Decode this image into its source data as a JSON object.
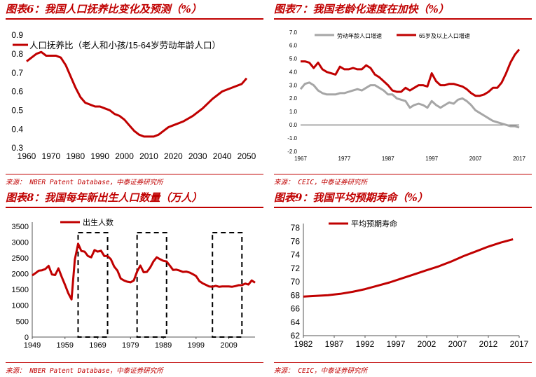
{
  "colors": {
    "red": "#c00000",
    "gray": "#a6a6a6",
    "black": "#000000"
  },
  "panels": [
    {
      "title": "图表6：我国人口抚养比变化及预测（%）",
      "source": "来源：  NBER Patent Database，中泰证券研究所"
    },
    {
      "title": "图表7：我国老龄化速度在加快（%）",
      "source": "来源：  CEIC，中泰证券研究所"
    },
    {
      "title": "图表8：我国每年新出生人口数量（万人）",
      "source": "来源：  NBER Patent Database，中泰证券研究所"
    },
    {
      "title": "图表9：我国平均预期寿命（%）",
      "source": "来源：  CEIC，中泰证券研究所"
    }
  ],
  "chart_data": [
    {
      "type": "line",
      "ylim": [
        0.3,
        0.9
      ],
      "xlim": [
        1960,
        2050
      ],
      "yticks": [
        "0.3",
        "0.4",
        "0.5",
        "0.6",
        "0.7",
        "0.8",
        "0.9"
      ],
      "xticks": [
        "1960",
        "1970",
        "1980",
        "1990",
        "2000",
        "2010",
        "2020",
        "2030",
        "2040",
        "2050"
      ],
      "legend": "top-left",
      "series": [
        {
          "name": "人口抚养比（老人和小孩/15-64岁劳动年龄人口）",
          "color": "#c00000",
          "x": [
            1960,
            1962,
            1964,
            1966,
            1968,
            1970,
            1972,
            1974,
            1976,
            1978,
            1980,
            1982,
            1984,
            1986,
            1988,
            1990,
            1992,
            1994,
            1996,
            1998,
            2000,
            2002,
            2004,
            2006,
            2008,
            2010,
            2012,
            2014,
            2016,
            2018,
            2020,
            2024,
            2028,
            2032,
            2036,
            2040,
            2044,
            2048,
            2050
          ],
          "values": [
            0.76,
            0.78,
            0.8,
            0.81,
            0.79,
            0.79,
            0.79,
            0.78,
            0.74,
            0.68,
            0.62,
            0.57,
            0.54,
            0.53,
            0.52,
            0.52,
            0.51,
            0.5,
            0.48,
            0.47,
            0.45,
            0.42,
            0.39,
            0.37,
            0.36,
            0.36,
            0.36,
            0.37,
            0.39,
            0.41,
            0.42,
            0.44,
            0.47,
            0.51,
            0.56,
            0.6,
            0.62,
            0.64,
            0.67
          ]
        }
      ]
    },
    {
      "type": "line",
      "ylim": [
        -2.0,
        7.0
      ],
      "xlim": [
        1967,
        2017
      ],
      "yticks": [
        "-2.0",
        "-1.0",
        "0.0",
        "1.0",
        "2.0",
        "3.0",
        "4.0",
        "5.0",
        "6.0",
        "7.0"
      ],
      "xticks": [
        "1967",
        "1977",
        "1987",
        "1997",
        "2007",
        "2017"
      ],
      "legend": "top",
      "series": [
        {
          "name": "劳动年龄人口增速",
          "color": "#a6a6a6",
          "x": [
            1967,
            1968,
            1969,
            1970,
            1971,
            1972,
            1973,
            1974,
            1975,
            1976,
            1977,
            1978,
            1979,
            1980,
            1981,
            1982,
            1983,
            1984,
            1985,
            1986,
            1987,
            1988,
            1989,
            1990,
            1991,
            1992,
            1993,
            1994,
            1995,
            1996,
            1997,
            1998,
            1999,
            2000,
            2001,
            2002,
            2003,
            2004,
            2005,
            2006,
            2007,
            2008,
            2009,
            2010,
            2011,
            2012,
            2013,
            2014,
            2015,
            2016,
            2017
          ],
          "values": [
            2.7,
            3.1,
            3.2,
            3.0,
            2.6,
            2.4,
            2.3,
            2.3,
            2.3,
            2.4,
            2.4,
            2.5,
            2.6,
            2.7,
            2.6,
            2.8,
            3.0,
            3.0,
            2.8,
            2.6,
            2.3,
            2.3,
            2.0,
            1.9,
            1.8,
            1.3,
            1.5,
            1.6,
            1.5,
            1.3,
            1.8,
            1.5,
            1.3,
            1.5,
            1.7,
            1.6,
            1.9,
            2.0,
            1.8,
            1.5,
            1.1,
            0.9,
            0.7,
            0.5,
            0.3,
            0.2,
            0.1,
            0.0,
            -0.1,
            -0.1,
            -0.2
          ]
        },
        {
          "name": "65岁及以上人口增速",
          "color": "#c00000",
          "x": [
            1967,
            1968,
            1969,
            1970,
            1971,
            1972,
            1973,
            1974,
            1975,
            1976,
            1977,
            1978,
            1979,
            1980,
            1981,
            1982,
            1983,
            1984,
            1985,
            1986,
            1987,
            1988,
            1989,
            1990,
            1991,
            1992,
            1993,
            1994,
            1995,
            1996,
            1997,
            1998,
            1999,
            2000,
            2001,
            2002,
            2003,
            2004,
            2005,
            2006,
            2007,
            2008,
            2009,
            2010,
            2011,
            2012,
            2013,
            2014,
            2015,
            2016,
            2017
          ],
          "values": [
            4.8,
            4.8,
            4.7,
            4.3,
            4.7,
            4.2,
            4.0,
            3.9,
            3.8,
            4.4,
            4.2,
            4.2,
            4.3,
            4.2,
            4.2,
            4.5,
            4.3,
            3.8,
            3.6,
            3.3,
            3.0,
            2.6,
            2.5,
            2.5,
            2.8,
            2.6,
            2.8,
            3.0,
            3.0,
            2.9,
            3.9,
            3.3,
            3.0,
            3.0,
            3.1,
            3.1,
            3.0,
            2.9,
            2.7,
            2.4,
            2.2,
            2.2,
            2.3,
            2.5,
            2.8,
            2.8,
            3.2,
            3.9,
            4.7,
            5.3,
            5.7
          ]
        }
      ]
    },
    {
      "type": "line",
      "ylim": [
        0,
        3500
      ],
      "xlim": [
        1949,
        2017
      ],
      "yticks": [
        "0",
        "500",
        "1000",
        "1500",
        "2000",
        "2500",
        "3000",
        "3500"
      ],
      "xticks": [
        "1949",
        "1959",
        "1969",
        "1979",
        "1989",
        "1999",
        "2009"
      ],
      "legend": "top",
      "annotations": [
        "dashed boxes around 1963-1972, 1981-1990, 2004-2013"
      ],
      "series": [
        {
          "name": "出生人数",
          "color": "#c00000",
          "x": [
            1949,
            1950,
            1951,
            1952,
            1953,
            1954,
            1955,
            1956,
            1957,
            1958,
            1959,
            1960,
            1961,
            1962,
            1963,
            1964,
            1965,
            1966,
            1967,
            1968,
            1969,
            1970,
            1971,
            1972,
            1973,
            1974,
            1975,
            1976,
            1977,
            1978,
            1979,
            1980,
            1981,
            1982,
            1983,
            1984,
            1985,
            1986,
            1987,
            1988,
            1989,
            1990,
            1991,
            1992,
            1993,
            1994,
            1995,
            1996,
            1997,
            1998,
            1999,
            2000,
            2001,
            2002,
            2003,
            2004,
            2005,
            2006,
            2007,
            2008,
            2009,
            2010,
            2011,
            2012,
            2013,
            2014,
            2015,
            2016,
            2017
          ],
          "values": [
            1950,
            2020,
            2100,
            2110,
            2150,
            2250,
            1980,
            1960,
            2170,
            1900,
            1650,
            1390,
            1190,
            2450,
            2950,
            2720,
            2700,
            2560,
            2520,
            2750,
            2700,
            2730,
            2560,
            2560,
            2460,
            2230,
            2100,
            1850,
            1790,
            1750,
            1730,
            1790,
            2070,
            2260,
            2050,
            2060,
            2200,
            2390,
            2520,
            2460,
            2410,
            2390,
            2260,
            2120,
            2130,
            2100,
            2060,
            2070,
            2040,
            1990,
            1930,
            1770,
            1700,
            1650,
            1600,
            1590,
            1620,
            1590,
            1600,
            1600,
            1600,
            1590,
            1610,
            1640,
            1640,
            1690,
            1660,
            1790,
            1720
          ]
        }
      ]
    },
    {
      "type": "line",
      "ylim": [
        62,
        78
      ],
      "xlim": [
        1982,
        2017
      ],
      "yticks": [
        "62",
        "64",
        "66",
        "68",
        "70",
        "72",
        "74",
        "76",
        "78"
      ],
      "xticks": [
        "1982",
        "1987",
        "1992",
        "1997",
        "2002",
        "2007",
        "2012",
        "2017"
      ],
      "legend": "top",
      "series": [
        {
          "name": "平均预期寿命",
          "color": "#c00000",
          "x": [
            1982,
            1984,
            1986,
            1988,
            1990,
            1992,
            1994,
            1996,
            1998,
            2000,
            2002,
            2004,
            2006,
            2008,
            2010,
            2012,
            2014,
            2016
          ],
          "values": [
            67.8,
            67.9,
            68.0,
            68.2,
            68.5,
            68.9,
            69.4,
            69.9,
            70.5,
            71.1,
            71.7,
            72.3,
            73.0,
            73.8,
            74.5,
            75.2,
            75.8,
            76.3
          ]
        }
      ]
    }
  ]
}
